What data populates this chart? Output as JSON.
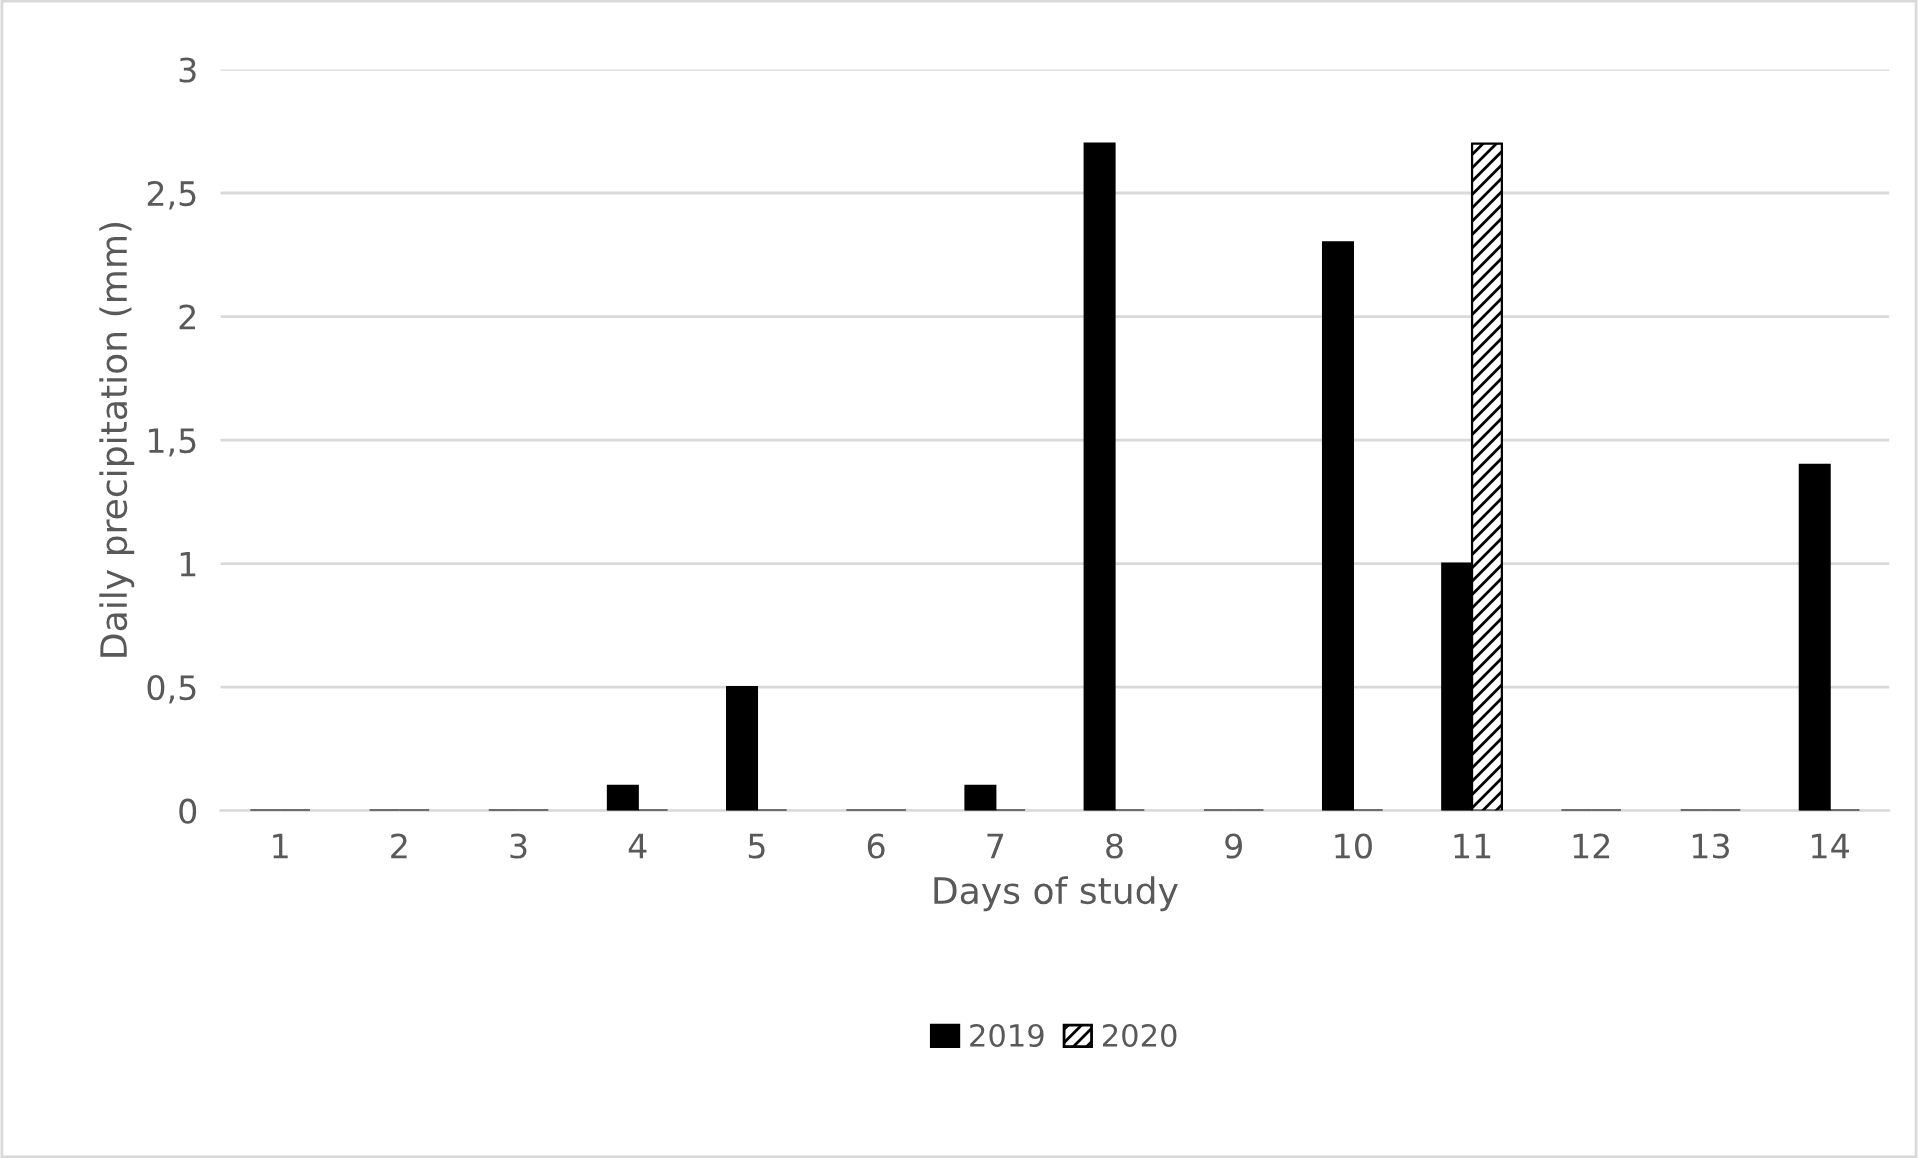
{
  "chart_data": {
    "type": "bar",
    "xlabel": "Days of study",
    "ylabel": "Daily precipitation (mm)",
    "categories": [
      "1",
      "2",
      "3",
      "4",
      "5",
      "6",
      "7",
      "8",
      "9",
      "10",
      "11",
      "12",
      "13",
      "14"
    ],
    "series": [
      {
        "name": "2019",
        "color": "#000000",
        "values": [
          0,
          0,
          0,
          0.1,
          0.5,
          0,
          0.1,
          2.7,
          0,
          2.3,
          1.0,
          0,
          0,
          1.4
        ]
      },
      {
        "name": "2020",
        "color": "#000000",
        "values": [
          0,
          0,
          0,
          0,
          0,
          0,
          0,
          0,
          0,
          0,
          2.7,
          0,
          0,
          0
        ]
      }
    ],
    "ylim": [
      0,
      3
    ],
    "yticks": [
      0,
      {
        "value": 0.5,
        "label": "0,5"
      },
      1,
      {
        "value": 1.5,
        "label": "1,5"
      },
      2,
      {
        "value": 2.5,
        "label": "2,5"
      },
      3
    ],
    "grid": "y",
    "legend": "bottom"
  }
}
